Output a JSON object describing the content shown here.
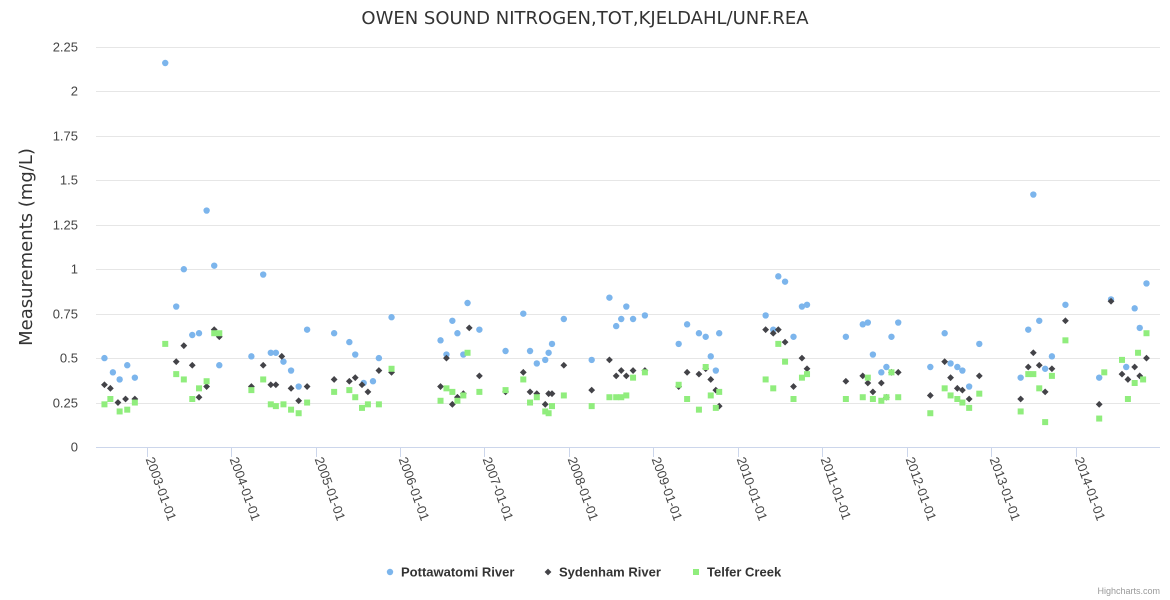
{
  "chart_data": {
    "type": "scatter",
    "title": "OWEN SOUND NITROGEN,TOT,KJELDAHL/UNF.REA",
    "ylabel": "Measurements (mg/L)",
    "xlabel": "",
    "ylim": [
      0,
      2.25
    ],
    "yticks": [
      "0",
      "0.25",
      "0.5",
      "0.75",
      "1",
      "1.25",
      "1.5",
      "1.75",
      "2",
      "2.25"
    ],
    "ytick_values": [
      0,
      0.25,
      0.5,
      0.75,
      1,
      1.25,
      1.5,
      1.75,
      2,
      2.25
    ],
    "xlim": [
      2002.4,
      2015.0
    ],
    "xticks": [
      "2003-01-01",
      "2004-01-01",
      "2005-01-01",
      "2006-01-01",
      "2007-01-01",
      "2008-01-01",
      "2009-01-01",
      "2010-01-01",
      "2011-01-01",
      "2012-01-01",
      "2013-01-01",
      "2014-01-01"
    ],
    "xtick_values": [
      2003,
      2004,
      2005,
      2006,
      2007,
      2008,
      2009,
      2010,
      2011,
      2012,
      2013,
      2014
    ],
    "legend_position": "bottom-center",
    "credits": "Highcharts.com",
    "series": [
      {
        "name": "Pottawatomi River",
        "marker": "circle",
        "color": "#7cb5ec",
        "points": [
          [
            2002.5,
            0.5
          ],
          [
            2002.6,
            0.42
          ],
          [
            2002.68,
            0.38
          ],
          [
            2002.77,
            0.46
          ],
          [
            2002.86,
            0.39
          ],
          [
            2003.22,
            2.16
          ],
          [
            2003.35,
            0.79
          ],
          [
            2003.44,
            1.0
          ],
          [
            2003.54,
            0.63
          ],
          [
            2003.62,
            0.64
          ],
          [
            2003.71,
            1.33
          ],
          [
            2003.8,
            1.02
          ],
          [
            2003.86,
            0.46
          ],
          [
            2004.24,
            0.51
          ],
          [
            2004.38,
            0.97
          ],
          [
            2004.47,
            0.53
          ],
          [
            2004.53,
            0.53
          ],
          [
            2004.62,
            0.48
          ],
          [
            2004.71,
            0.43
          ],
          [
            2004.8,
            0.34
          ],
          [
            2004.9,
            0.66
          ],
          [
            2005.22,
            0.64
          ],
          [
            2005.4,
            0.59
          ],
          [
            2005.47,
            0.52
          ],
          [
            2005.57,
            0.36
          ],
          [
            2005.68,
            0.37
          ],
          [
            2005.75,
            0.5
          ],
          [
            2005.9,
            0.73
          ],
          [
            2006.48,
            0.6
          ],
          [
            2006.55,
            0.52
          ],
          [
            2006.62,
            0.71
          ],
          [
            2006.68,
            0.64
          ],
          [
            2006.75,
            0.52
          ],
          [
            2006.8,
            0.81
          ],
          [
            2006.94,
            0.66
          ],
          [
            2007.25,
            0.54
          ],
          [
            2007.46,
            0.75
          ],
          [
            2007.54,
            0.54
          ],
          [
            2007.62,
            0.47
          ],
          [
            2007.72,
            0.49
          ],
          [
            2007.76,
            0.53
          ],
          [
            2007.8,
            0.58
          ],
          [
            2007.94,
            0.72
          ],
          [
            2008.27,
            0.49
          ],
          [
            2008.48,
            0.84
          ],
          [
            2008.56,
            0.68
          ],
          [
            2008.62,
            0.72
          ],
          [
            2008.68,
            0.79
          ],
          [
            2008.76,
            0.72
          ],
          [
            2008.9,
            0.74
          ],
          [
            2009.3,
            0.58
          ],
          [
            2009.4,
            0.69
          ],
          [
            2009.54,
            0.64
          ],
          [
            2009.62,
            0.62
          ],
          [
            2009.68,
            0.51
          ],
          [
            2009.74,
            0.43
          ],
          [
            2009.78,
            0.64
          ],
          [
            2010.33,
            0.74
          ],
          [
            2010.42,
            0.66
          ],
          [
            2010.48,
            0.96
          ],
          [
            2010.56,
            0.93
          ],
          [
            2010.66,
            0.62
          ],
          [
            2010.76,
            0.79
          ],
          [
            2010.82,
            0.8
          ],
          [
            2011.28,
            0.62
          ],
          [
            2011.48,
            0.69
          ],
          [
            2011.54,
            0.7
          ],
          [
            2011.6,
            0.52
          ],
          [
            2011.7,
            0.42
          ],
          [
            2011.76,
            0.45
          ],
          [
            2011.82,
            0.62
          ],
          [
            2011.9,
            0.7
          ],
          [
            2012.28,
            0.45
          ],
          [
            2012.45,
            0.64
          ],
          [
            2012.52,
            0.47
          ],
          [
            2012.6,
            0.45
          ],
          [
            2012.66,
            0.43
          ],
          [
            2012.74,
            0.34
          ],
          [
            2012.86,
            0.58
          ],
          [
            2013.35,
            0.39
          ],
          [
            2013.44,
            0.66
          ],
          [
            2013.5,
            1.42
          ],
          [
            2013.57,
            0.71
          ],
          [
            2013.64,
            0.44
          ],
          [
            2013.72,
            0.51
          ],
          [
            2013.88,
            0.8
          ],
          [
            2014.28,
            0.39
          ],
          [
            2014.42,
            0.83
          ],
          [
            2014.6,
            0.45
          ],
          [
            2014.7,
            0.78
          ],
          [
            2014.76,
            0.67
          ],
          [
            2014.84,
            0.92
          ]
        ]
      },
      {
        "name": "Sydenham River",
        "marker": "diamond",
        "color": "#434348",
        "points": [
          [
            2002.5,
            0.35
          ],
          [
            2002.57,
            0.33
          ],
          [
            2002.66,
            0.25
          ],
          [
            2002.75,
            0.27
          ],
          [
            2002.86,
            0.27
          ],
          [
            2003.35,
            0.48
          ],
          [
            2003.44,
            0.57
          ],
          [
            2003.54,
            0.46
          ],
          [
            2003.62,
            0.28
          ],
          [
            2003.71,
            0.34
          ],
          [
            2003.8,
            0.66
          ],
          [
            2003.86,
            0.62
          ],
          [
            2004.24,
            0.34
          ],
          [
            2004.38,
            0.46
          ],
          [
            2004.47,
            0.35
          ],
          [
            2004.53,
            0.35
          ],
          [
            2004.6,
            0.51
          ],
          [
            2004.71,
            0.33
          ],
          [
            2004.8,
            0.26
          ],
          [
            2004.9,
            0.34
          ],
          [
            2005.22,
            0.38
          ],
          [
            2005.4,
            0.37
          ],
          [
            2005.47,
            0.39
          ],
          [
            2005.55,
            0.35
          ],
          [
            2005.62,
            0.31
          ],
          [
            2005.75,
            0.43
          ],
          [
            2005.9,
            0.42
          ],
          [
            2006.48,
            0.34
          ],
          [
            2006.55,
            0.5
          ],
          [
            2006.62,
            0.24
          ],
          [
            2006.68,
            0.28
          ],
          [
            2006.75,
            0.3
          ],
          [
            2006.82,
            0.67
          ],
          [
            2006.94,
            0.4
          ],
          [
            2007.25,
            0.31
          ],
          [
            2007.46,
            0.42
          ],
          [
            2007.54,
            0.31
          ],
          [
            2007.62,
            0.3
          ],
          [
            2007.72,
            0.24
          ],
          [
            2007.76,
            0.3
          ],
          [
            2007.8,
            0.3
          ],
          [
            2007.94,
            0.46
          ],
          [
            2008.27,
            0.32
          ],
          [
            2008.48,
            0.49
          ],
          [
            2008.56,
            0.4
          ],
          [
            2008.62,
            0.43
          ],
          [
            2008.68,
            0.4
          ],
          [
            2008.76,
            0.43
          ],
          [
            2008.9,
            0.43
          ],
          [
            2009.3,
            0.34
          ],
          [
            2009.4,
            0.42
          ],
          [
            2009.54,
            0.41
          ],
          [
            2009.62,
            0.44
          ],
          [
            2009.68,
            0.38
          ],
          [
            2009.74,
            0.32
          ],
          [
            2009.78,
            0.23
          ],
          [
            2010.33,
            0.66
          ],
          [
            2010.42,
            0.64
          ],
          [
            2010.48,
            0.66
          ],
          [
            2010.56,
            0.59
          ],
          [
            2010.66,
            0.34
          ],
          [
            2010.76,
            0.5
          ],
          [
            2010.82,
            0.44
          ],
          [
            2011.28,
            0.37
          ],
          [
            2011.48,
            0.4
          ],
          [
            2011.54,
            0.36
          ],
          [
            2011.6,
            0.31
          ],
          [
            2011.7,
            0.36
          ],
          [
            2011.76,
            0.28
          ],
          [
            2011.82,
            0.42
          ],
          [
            2011.9,
            0.42
          ],
          [
            2012.28,
            0.29
          ],
          [
            2012.45,
            0.48
          ],
          [
            2012.52,
            0.39
          ],
          [
            2012.6,
            0.33
          ],
          [
            2012.66,
            0.32
          ],
          [
            2012.74,
            0.27
          ],
          [
            2012.86,
            0.4
          ],
          [
            2013.35,
            0.27
          ],
          [
            2013.44,
            0.45
          ],
          [
            2013.5,
            0.53
          ],
          [
            2013.57,
            0.46
          ],
          [
            2013.64,
            0.31
          ],
          [
            2013.72,
            0.44
          ],
          [
            2013.88,
            0.71
          ],
          [
            2014.28,
            0.24
          ],
          [
            2014.42,
            0.82
          ],
          [
            2014.55,
            0.41
          ],
          [
            2014.62,
            0.38
          ],
          [
            2014.7,
            0.45
          ],
          [
            2014.76,
            0.4
          ],
          [
            2014.84,
            0.5
          ]
        ]
      },
      {
        "name": "Telfer Creek",
        "marker": "square",
        "color": "#90ed7d",
        "points": [
          [
            2002.5,
            0.24
          ],
          [
            2002.57,
            0.27
          ],
          [
            2002.68,
            0.2
          ],
          [
            2002.77,
            0.21
          ],
          [
            2002.86,
            0.25
          ],
          [
            2003.22,
            0.58
          ],
          [
            2003.35,
            0.41
          ],
          [
            2003.44,
            0.38
          ],
          [
            2003.54,
            0.27
          ],
          [
            2003.62,
            0.33
          ],
          [
            2003.71,
            0.37
          ],
          [
            2003.8,
            0.64
          ],
          [
            2003.86,
            0.64
          ],
          [
            2004.24,
            0.32
          ],
          [
            2004.38,
            0.38
          ],
          [
            2004.47,
            0.24
          ],
          [
            2004.53,
            0.23
          ],
          [
            2004.62,
            0.24
          ],
          [
            2004.71,
            0.21
          ],
          [
            2004.8,
            0.19
          ],
          [
            2004.9,
            0.25
          ],
          [
            2005.22,
            0.31
          ],
          [
            2005.4,
            0.32
          ],
          [
            2005.47,
            0.28
          ],
          [
            2005.55,
            0.22
          ],
          [
            2005.62,
            0.24
          ],
          [
            2005.75,
            0.24
          ],
          [
            2005.9,
            0.44
          ],
          [
            2006.48,
            0.26
          ],
          [
            2006.55,
            0.33
          ],
          [
            2006.62,
            0.31
          ],
          [
            2006.68,
            0.26
          ],
          [
            2006.75,
            0.29
          ],
          [
            2006.8,
            0.53
          ],
          [
            2006.94,
            0.31
          ],
          [
            2007.25,
            0.32
          ],
          [
            2007.46,
            0.38
          ],
          [
            2007.54,
            0.25
          ],
          [
            2007.62,
            0.28
          ],
          [
            2007.72,
            0.2
          ],
          [
            2007.76,
            0.19
          ],
          [
            2007.8,
            0.23
          ],
          [
            2007.94,
            0.29
          ],
          [
            2008.27,
            0.23
          ],
          [
            2008.48,
            0.28
          ],
          [
            2008.56,
            0.28
          ],
          [
            2008.62,
            0.28
          ],
          [
            2008.68,
            0.29
          ],
          [
            2008.76,
            0.39
          ],
          [
            2008.9,
            0.42
          ],
          [
            2009.3,
            0.35
          ],
          [
            2009.4,
            0.27
          ],
          [
            2009.54,
            0.21
          ],
          [
            2009.62,
            0.45
          ],
          [
            2009.68,
            0.29
          ],
          [
            2009.74,
            0.22
          ],
          [
            2009.78,
            0.31
          ],
          [
            2010.33,
            0.38
          ],
          [
            2010.42,
            0.33
          ],
          [
            2010.48,
            0.58
          ],
          [
            2010.56,
            0.48
          ],
          [
            2010.66,
            0.27
          ],
          [
            2010.76,
            0.39
          ],
          [
            2010.82,
            0.41
          ],
          [
            2011.28,
            0.27
          ],
          [
            2011.48,
            0.28
          ],
          [
            2011.54,
            0.39
          ],
          [
            2011.6,
            0.27
          ],
          [
            2011.7,
            0.26
          ],
          [
            2011.76,
            0.28
          ],
          [
            2011.82,
            0.42
          ],
          [
            2011.9,
            0.28
          ],
          [
            2012.28,
            0.19
          ],
          [
            2012.45,
            0.33
          ],
          [
            2012.52,
            0.29
          ],
          [
            2012.6,
            0.27
          ],
          [
            2012.66,
            0.25
          ],
          [
            2012.74,
            0.22
          ],
          [
            2012.86,
            0.3
          ],
          [
            2013.35,
            0.2
          ],
          [
            2013.44,
            0.41
          ],
          [
            2013.5,
            0.41
          ],
          [
            2013.57,
            0.33
          ],
          [
            2013.64,
            0.14
          ],
          [
            2013.72,
            0.4
          ],
          [
            2013.88,
            0.6
          ],
          [
            2014.28,
            0.16
          ],
          [
            2014.34,
            0.42
          ],
          [
            2014.55,
            0.49
          ],
          [
            2014.62,
            0.27
          ],
          [
            2014.7,
            0.36
          ],
          [
            2014.74,
            0.53
          ],
          [
            2014.8,
            0.38
          ],
          [
            2014.84,
            0.64
          ]
        ]
      }
    ]
  }
}
